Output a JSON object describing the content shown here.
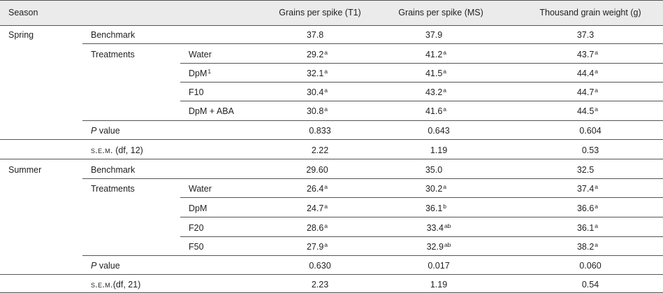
{
  "headers": {
    "season": "Season",
    "col1": "Grains per spike (T1)",
    "col2": "Grains per spike (MS)",
    "col3": "Thousand grain weight (g)"
  },
  "spring": {
    "season": "Spring",
    "benchmark": {
      "label": "Benchmark",
      "v1": "37.8",
      "v2": "37.9",
      "v3": "37.3"
    },
    "treatments_label": "Treatments",
    "rows": [
      {
        "name": "Water",
        "name_sup": "",
        "v1": "29.2",
        "s1": "a",
        "v2": "41.2",
        "s2": "a",
        "v3": "43.7",
        "s3": "a"
      },
      {
        "name": "DpM",
        "name_sup": "1",
        "v1": "32.1",
        "s1": "a",
        "v2": "41.5",
        "s2": "a",
        "v3": "44.4",
        "s3": "a"
      },
      {
        "name": "F10",
        "name_sup": "",
        "v1": "30.4",
        "s1": "a",
        "v2": "43.2",
        "s2": "a",
        "v3": "44.7",
        "s3": "a"
      },
      {
        "name": "DpM + ABA",
        "name_sup": "",
        "v1": "30.8",
        "s1": "a",
        "v2": "41.6",
        "s2": "a",
        "v3": "44.5",
        "s3": "a"
      }
    ],
    "pvalue": {
      "p": "P",
      "label": " value",
      "v1": "0.833",
      "v2": "0.643",
      "v3": "0.604"
    },
    "sem": {
      "label": "s.e.m.",
      "df": " (df, 12)",
      "v1": "2.22",
      "v2": "1.19",
      "v3": "0.53"
    }
  },
  "summer": {
    "season": "Summer",
    "benchmark": {
      "label": "Benchmark",
      "v1": "29.60",
      "v2": "35.0",
      "v3": "32.5"
    },
    "treatments_label": "Treatments",
    "rows": [
      {
        "name": "Water",
        "name_sup": "",
        "v1": "26.4",
        "s1": "a",
        "v2": "30.2",
        "s2": "a",
        "v3": "37.4",
        "s3": "a"
      },
      {
        "name": "DpM",
        "name_sup": "",
        "v1": "24.7",
        "s1": "a",
        "v2": "36.1",
        "s2": "b",
        "v3": "36.6",
        "s3": "a"
      },
      {
        "name": "F20",
        "name_sup": "",
        "v1": "28.6",
        "s1": "a",
        "v2": "33.4",
        "s2": "ab",
        "v3": "36.1",
        "s3": "a"
      },
      {
        "name": "F50",
        "name_sup": "",
        "v1": "27.9",
        "s1": "a",
        "v2": "32.9",
        "s2": "ab",
        "v3": "38.2",
        "s3": "a"
      }
    ],
    "pvalue": {
      "p": "P",
      "label": " value",
      "v1": "0.630",
      "v2": "0.017",
      "v3": "0.060"
    },
    "sem": {
      "label": "s.e.m.",
      "df": "(df, 21)",
      "v1": "2.23",
      "v2": "1.19",
      "v3": "0.54"
    }
  }
}
